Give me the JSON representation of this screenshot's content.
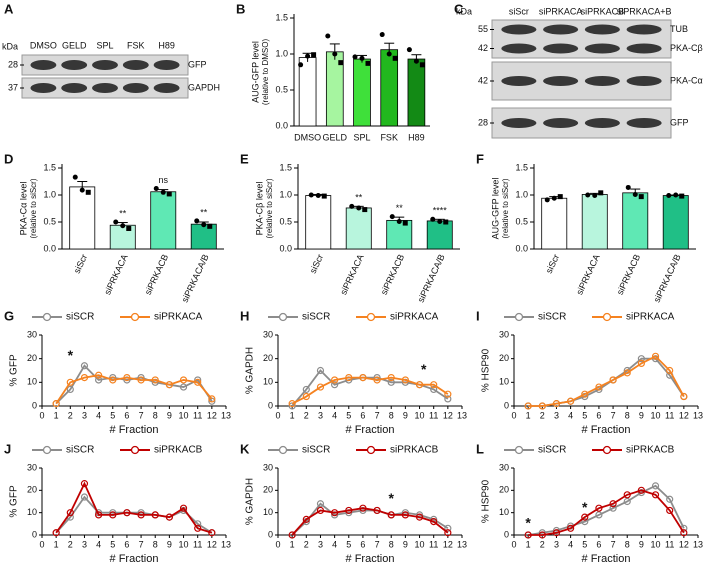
{
  "chart_data": [
    {
      "type": "blot",
      "panel": "A",
      "unit": "kDa",
      "lanes": [
        "DMSO",
        "GELD",
        "SPL",
        "FSK",
        "H89"
      ],
      "rows": [
        {
          "markers": [
            28
          ],
          "labels": [
            "GFP"
          ]
        },
        {
          "markers": [
            37
          ],
          "labels": [
            "GAPDH"
          ]
        }
      ]
    },
    {
      "type": "bar",
      "panel": "B",
      "ylabel": "AUG-GFP level",
      "ylabel_note": "(relative to DMSO)",
      "categories": [
        "DMSO",
        "GELD",
        "SPL",
        "FSK",
        "H89"
      ],
      "values": [
        0.95,
        1.03,
        0.93,
        1.06,
        0.93
      ],
      "errors": [
        0.06,
        0.11,
        0.05,
        0.09,
        0.06
      ],
      "points": [
        [
          0.85,
          0.99,
          0.97
        ],
        [
          1.25,
          0.88,
          1.0
        ],
        [
          0.96,
          0.87,
          0.94
        ],
        [
          1.27,
          0.94,
          1.0
        ],
        [
          1.06,
          0.85,
          0.9
        ]
      ],
      "colors": [
        "#ffffff",
        "#a6f5a0",
        "#3fe03a",
        "#22b81e",
        "#138a15"
      ],
      "ylim": [
        0,
        1.5
      ],
      "yticks": [
        {
          "value": 0,
          "label": "0.0"
        },
        0.5,
        {
          "value": 1,
          "label": "1.0"
        },
        1.5
      ]
    },
    {
      "type": "blot",
      "panel": "C",
      "unit": "kDa",
      "lanes": [
        "siScr",
        "siPRKACA",
        "siPRKACB",
        "siPRKACA+B"
      ],
      "rows": [
        {
          "markers": [
            55,
            42
          ],
          "labels": [
            "TUB",
            "PKA-Cβ"
          ]
        },
        {
          "markers": [
            42
          ],
          "labels": [
            "PKA-Cα"
          ]
        },
        {
          "markers": [
            28
          ],
          "labels": [
            "GFP"
          ]
        }
      ]
    },
    {
      "type": "bar",
      "panel": "D",
      "ylabel": "PKA-Cα level",
      "ylabel_note": "(relative to siScr)",
      "categories": [
        "siScr",
        "siPRKACA",
        "siPRKACB",
        "siPRKACA/B"
      ],
      "values": [
        1.15,
        0.44,
        1.06,
        0.46
      ],
      "errors": [
        0.1,
        0.05,
        0.04,
        0.04
      ],
      "points": [
        [
          1.33,
          1.05,
          1.09
        ],
        [
          0.5,
          0.38,
          0.43
        ],
        [
          1.12,
          1.02,
          1.05
        ],
        [
          0.52,
          0.42,
          0.45
        ]
      ],
      "sig": [
        null,
        "**",
        "ns",
        "**"
      ],
      "colors": [
        "#ffffff",
        "#b8f5dd",
        "#5fe8b4",
        "#20bf86"
      ],
      "ylim": [
        0,
        1.5
      ],
      "yticks": [
        {
          "value": 0,
          "label": "0.0"
        },
        0.5,
        {
          "value": 1,
          "label": "1.0"
        },
        1.5
      ]
    },
    {
      "type": "bar",
      "panel": "E",
      "ylabel": "PKA-Cβ level",
      "ylabel_note": "(relative to siScr)",
      "categories": [
        "siScr",
        "siPRKACA",
        "siPRKACB",
        "siPRKACA/B"
      ],
      "values": [
        0.99,
        0.76,
        0.53,
        0.52
      ],
      "errors": [
        0.02,
        0.03,
        0.06,
        0.03
      ],
      "points": [
        [
          1.0,
          0.98,
          0.99
        ],
        [
          0.79,
          0.73,
          0.76
        ],
        [
          0.6,
          0.48,
          0.51
        ],
        [
          0.55,
          0.5,
          0.51
        ]
      ],
      "sig": [
        null,
        "**",
        "**",
        "****"
      ],
      "colors": [
        "#ffffff",
        "#b8f5dd",
        "#5fe8b4",
        "#20bf86"
      ],
      "ylim": [
        0,
        1.5
      ],
      "yticks": [
        {
          "value": 0,
          "label": "0.0"
        },
        0.5,
        {
          "value": 1,
          "label": "1.0"
        },
        1.5
      ]
    },
    {
      "type": "bar",
      "panel": "F",
      "ylabel": "AUG-GFP level",
      "ylabel_note": "(relative to siScr)",
      "categories": [
        "siScr",
        "siPRKACA",
        "siPRKACB",
        "siPRKACA/B"
      ],
      "values": [
        0.94,
        1.01,
        1.04,
        0.99
      ],
      "errors": [
        0.03,
        0.02,
        0.07,
        0.01
      ],
      "points": [
        [
          0.91,
          0.97,
          0.94
        ],
        [
          1.0,
          1.04,
          0.99
        ],
        [
          1.14,
          0.97,
          1.01
        ],
        [
          0.99,
          0.98,
          1.0
        ]
      ],
      "colors": [
        "#ffffff",
        "#b8f5dd",
        "#5fe8b4",
        "#20bf86"
      ],
      "ylim": [
        0,
        1.5
      ],
      "yticks": [
        {
          "value": 0,
          "label": "0.0"
        },
        0.5,
        {
          "value": 1,
          "label": "1.0"
        },
        1.5
      ]
    },
    {
      "type": "line",
      "panel": "G",
      "ylabel": "% GFP",
      "xlabel": "# Fraction",
      "x": [
        1,
        2,
        3,
        4,
        5,
        6,
        7,
        8,
        9,
        10,
        11,
        12
      ],
      "xlim": [
        0,
        13
      ],
      "xticks": [
        0,
        1,
        2,
        3,
        4,
        5,
        6,
        7,
        8,
        9,
        10,
        11,
        12,
        13
      ],
      "ylim": [
        0,
        30
      ],
      "yticks": [
        0,
        10,
        20,
        30
      ],
      "series": [
        {
          "name": "siSCR",
          "color": "#8c8c8c",
          "values": [
            1,
            7,
            17,
            11,
            12,
            11,
            12,
            10,
            9,
            8,
            11,
            2
          ]
        },
        {
          "name": "siPRKACA",
          "color": "#f58220",
          "values": [
            1,
            10,
            12,
            13,
            11,
            12,
            11,
            11,
            9,
            11,
            10,
            3
          ]
        }
      ],
      "annotations": [
        {
          "text": "*",
          "x": 2,
          "y": 21
        }
      ]
    },
    {
      "type": "line",
      "panel": "H",
      "ylabel": "% GAPDH",
      "xlabel": "# Fraction",
      "x": [
        1,
        2,
        3,
        4,
        5,
        6,
        7,
        8,
        9,
        10,
        11,
        12
      ],
      "xlim": [
        0,
        13
      ],
      "xticks": [
        0,
        1,
        2,
        3,
        4,
        5,
        6,
        7,
        8,
        9,
        10,
        11,
        12,
        13
      ],
      "ylim": [
        0,
        30
      ],
      "yticks": [
        0,
        10,
        20,
        30
      ],
      "series": [
        {
          "name": "siSCR",
          "color": "#8c8c8c",
          "values": [
            0,
            7,
            15,
            9,
            11,
            12,
            12,
            10,
            10,
            9,
            7,
            3
          ]
        },
        {
          "name": "siPRKACA",
          "color": "#f58220",
          "values": [
            1,
            4,
            8,
            11,
            12,
            12,
            11,
            12,
            11,
            9,
            9,
            5
          ]
        }
      ],
      "annotations": [
        {
          "text": "*",
          "x": 10.3,
          "y": 15
        }
      ]
    },
    {
      "type": "line",
      "panel": "I",
      "ylabel": "% HSP90",
      "xlabel": "# Fraction",
      "x": [
        1,
        2,
        3,
        4,
        5,
        6,
        7,
        8,
        9,
        10,
        11,
        12
      ],
      "xlim": [
        0,
        13
      ],
      "xticks": [
        0,
        1,
        2,
        3,
        4,
        5,
        6,
        7,
        8,
        9,
        10,
        11,
        12,
        13
      ],
      "ylim": [
        0,
        30
      ],
      "yticks": [
        0,
        10,
        20,
        30
      ],
      "series": [
        {
          "name": "siSCR",
          "color": "#8c8c8c",
          "values": [
            0,
            0,
            1,
            2,
            4,
            7,
            11,
            15,
            20,
            20,
            13,
            4
          ]
        },
        {
          "name": "siPRKACA",
          "color": "#f58220",
          "values": [
            0,
            0,
            1,
            2,
            5,
            8,
            11,
            14,
            18,
            21,
            15,
            4
          ]
        }
      ]
    },
    {
      "type": "line",
      "panel": "J",
      "ylabel": "% GFP",
      "xlabel": "# Fraction",
      "x": [
        1,
        2,
        3,
        4,
        5,
        6,
        7,
        8,
        9,
        10,
        11,
        12
      ],
      "xlim": [
        0,
        13
      ],
      "xticks": [
        0,
        1,
        2,
        3,
        4,
        5,
        6,
        7,
        8,
        9,
        10,
        11,
        12,
        13
      ],
      "ylim": [
        0,
        30
      ],
      "yticks": [
        0,
        10,
        20,
        30
      ],
      "series": [
        {
          "name": "siSCR",
          "color": "#8c8c8c",
          "values": [
            1,
            8,
            17,
            10,
            10,
            10,
            10,
            9,
            8,
            11,
            5,
            1
          ]
        },
        {
          "name": "siPRKACB",
          "color": "#c00000",
          "values": [
            1,
            10,
            23,
            9,
            9,
            10,
            9,
            9,
            8,
            12,
            3,
            1
          ]
        }
      ]
    },
    {
      "type": "line",
      "panel": "K",
      "ylabel": "% GAPDH",
      "xlabel": "# Fraction",
      "x": [
        1,
        2,
        3,
        4,
        5,
        6,
        7,
        8,
        9,
        10,
        11,
        12
      ],
      "xlim": [
        0,
        13
      ],
      "xticks": [
        0,
        1,
        2,
        3,
        4,
        5,
        6,
        7,
        8,
        9,
        10,
        11,
        12,
        13
      ],
      "ylim": [
        0,
        30
      ],
      "yticks": [
        0,
        10,
        20,
        30
      ],
      "series": [
        {
          "name": "siSCR",
          "color": "#8c8c8c",
          "values": [
            0,
            6,
            14,
            9,
            10,
            11,
            11,
            9,
            10,
            9,
            7,
            3
          ]
        },
        {
          "name": "siPRKACB",
          "color": "#c00000",
          "values": [
            0,
            7,
            11,
            10,
            11,
            12,
            11,
            9,
            9,
            8,
            6,
            1
          ]
        }
      ],
      "annotations": [
        {
          "text": "*",
          "x": 8,
          "y": 16
        }
      ]
    },
    {
      "type": "line",
      "panel": "L",
      "ylabel": "% HSP90",
      "xlabel": "# Fraction",
      "x": [
        1,
        2,
        3,
        4,
        5,
        6,
        7,
        8,
        9,
        10,
        11,
        12
      ],
      "xlim": [
        0,
        13
      ],
      "xticks": [
        0,
        1,
        2,
        3,
        4,
        5,
        6,
        7,
        8,
        9,
        10,
        11,
        12,
        13
      ],
      "ylim": [
        0,
        30
      ],
      "yticks": [
        0,
        10,
        20,
        30
      ],
      "series": [
        {
          "name": "siSCR",
          "color": "#8c8c8c",
          "values": [
            0,
            1,
            2,
            4,
            6,
            9,
            12,
            15,
            19,
            22,
            16,
            3
          ]
        },
        {
          "name": "siPRKACB",
          "color": "#c00000",
          "values": [
            0,
            0,
            1,
            3,
            8,
            12,
            14,
            18,
            20,
            18,
            11,
            1
          ]
        }
      ],
      "annotations": [
        {
          "text": "*",
          "x": 1,
          "y": 5
        },
        {
          "text": "*",
          "x": 5,
          "y": 12
        }
      ]
    }
  ]
}
